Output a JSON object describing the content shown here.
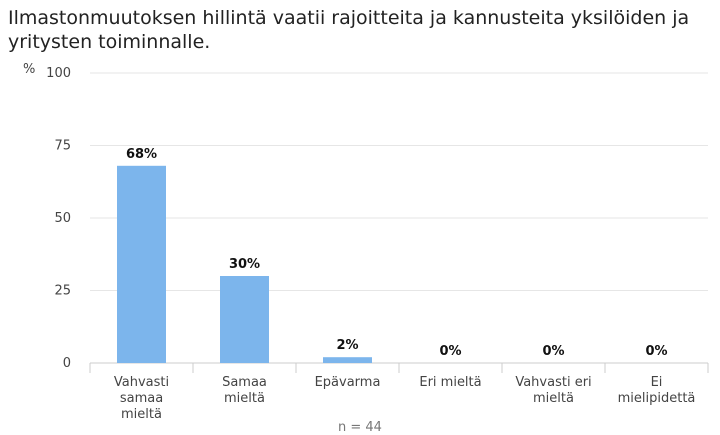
{
  "chart_data": {
    "type": "bar",
    "title": "Ilmastonmuutoksen hillintä vaatii rajoitteita ja kannusteita yksilöiden ja yritysten toiminnalle.",
    "ylabel": "%",
    "ylim": [
      0,
      100
    ],
    "yticks": [
      0,
      25,
      50,
      75,
      100
    ],
    "categories": [
      [
        "Vahvasti",
        "samaa",
        "mieltä"
      ],
      [
        "Samaa",
        "mieltä"
      ],
      [
        "Epävarma"
      ],
      [
        "Eri mieltä"
      ],
      [
        "Vahvasti eri",
        "mieltä"
      ],
      [
        "Ei",
        "mielipidettä"
      ]
    ],
    "values": [
      68,
      30,
      2,
      0,
      0,
      0
    ],
    "value_labels": [
      "68%",
      "30%",
      "2%",
      "0%",
      "0%",
      "0%"
    ],
    "bar_color": "#7cb5ec",
    "grid": true,
    "note": "n = 44"
  }
}
